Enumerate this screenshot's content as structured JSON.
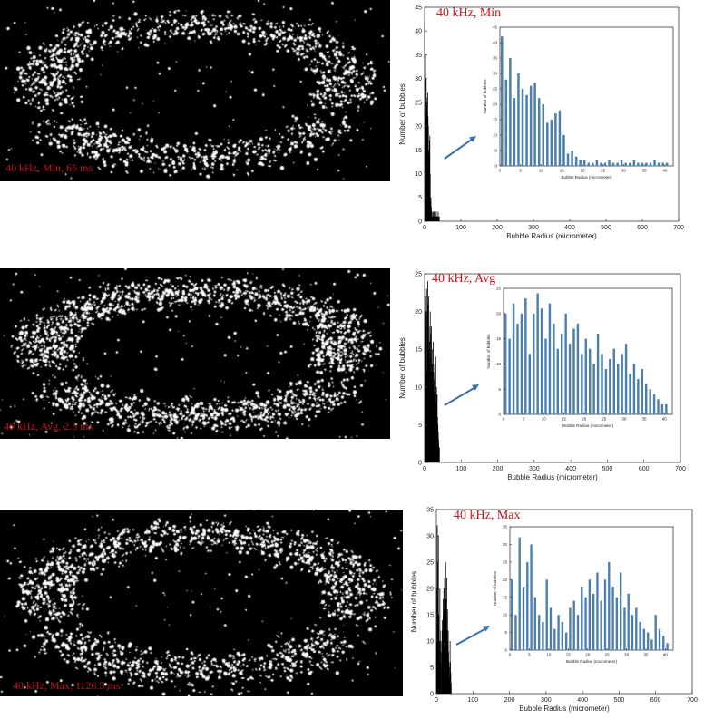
{
  "panels": [
    {
      "caption": "40 kHz, Min, 65 ms",
      "seed": 11,
      "density": 1.0,
      "chart_data": {
        "type": "bar",
        "title": "40 kHz, Min",
        "xlabel": "Bubble Radius (micrometer)",
        "ylabel": "Number of bubbles",
        "xlim": [
          0,
          700
        ],
        "ylim": [
          0,
          45
        ],
        "xticks": [
          0,
          100,
          200,
          300,
          400,
          500,
          600,
          700
        ],
        "yticks": [
          0,
          5,
          10,
          15,
          20,
          25,
          30,
          35,
          40,
          45
        ],
        "bar_color": "#000000",
        "x": [
          0.5,
          1.5,
          2.5,
          3.5,
          4.5,
          5.5,
          6.5,
          7.5,
          8.5,
          9.5,
          10.5,
          11.5,
          12.5,
          13.5,
          14.5,
          15.5,
          16.5,
          17.5,
          18.5,
          19.5,
          20.5,
          21.5,
          22.5,
          23.5,
          24.5,
          25.5,
          26.5,
          27.5,
          28.5,
          29.5,
          30.5,
          31.5,
          32.5,
          33.5,
          34.5,
          35.5,
          36.5,
          37.5,
          38.5,
          39.5,
          40.5
        ],
        "values": [
          42,
          28,
          35,
          22,
          30,
          25,
          23,
          26,
          27,
          22,
          20,
          14,
          15,
          17,
          18,
          10,
          4,
          5,
          3,
          2,
          2,
          1,
          1,
          2,
          1,
          1,
          2,
          1,
          1,
          2,
          1,
          1,
          2,
          1,
          1,
          1,
          1,
          2,
          1,
          1,
          1
        ],
        "inset": {
          "xlabel": "Bubble Radius (micrometer)",
          "ylabel": "Number of bubbles",
          "xlim": [
            0,
            42
          ],
          "ylim": [
            0,
            45
          ],
          "xticks": [
            0,
            5,
            10,
            15,
            20,
            25,
            30,
            35,
            40
          ],
          "yticks": [
            0,
            5,
            10,
            15,
            20,
            25,
            30,
            35,
            40,
            45
          ],
          "bar_color": "#4a7fb0",
          "x": [
            0.5,
            1.5,
            2.5,
            3.5,
            4.5,
            5.5,
            6.5,
            7.5,
            8.5,
            9.5,
            10.5,
            11.5,
            12.5,
            13.5,
            14.5,
            15.5,
            16.5,
            17.5,
            18.5,
            19.5,
            20.5,
            21.5,
            22.5,
            23.5,
            24.5,
            25.5,
            26.5,
            27.5,
            28.5,
            29.5,
            30.5,
            31.5,
            32.5,
            33.5,
            34.5,
            35.5,
            36.5,
            37.5,
            38.5,
            39.5,
            40.5
          ],
          "values": [
            42,
            28,
            35,
            22,
            30,
            25,
            23,
            26,
            27,
            22,
            20,
            14,
            15,
            17,
            18,
            10,
            4,
            5,
            3,
            2,
            2,
            1,
            1,
            2,
            1,
            1,
            2,
            1,
            1,
            2,
            1,
            1,
            2,
            1,
            1,
            1,
            1,
            2,
            1,
            1,
            1
          ]
        }
      }
    },
    {
      "caption": "40 kHz, Avg, 2.5 ms",
      "seed": 23,
      "density": 1.35,
      "chart_data": {
        "type": "bar",
        "title": "40 kHz, Avg",
        "xlabel": "Bubble Radius (micrometer)",
        "ylabel": "Number of bubbles",
        "xlim": [
          0,
          700
        ],
        "ylim": [
          0,
          25
        ],
        "xticks": [
          0,
          100,
          200,
          300,
          400,
          500,
          600,
          700
        ],
        "yticks": [
          0,
          5,
          10,
          15,
          20,
          25
        ],
        "bar_color": "#000000",
        "x": [
          0.5,
          1.5,
          2.5,
          3.5,
          4.5,
          5.5,
          6.5,
          7.5,
          8.5,
          9.5,
          10.5,
          11.5,
          12.5,
          13.5,
          14.5,
          15.5,
          16.5,
          17.5,
          18.5,
          19.5,
          20.5,
          21.5,
          22.5,
          23.5,
          24.5,
          25.5,
          26.5,
          27.5,
          28.5,
          29.5,
          30.5,
          31.5,
          32.5,
          33.5,
          34.5,
          35.5,
          36.5,
          37.5,
          38.5,
          39.5,
          40.5
        ],
        "values": [
          20,
          15,
          22,
          18,
          20,
          23,
          12,
          20,
          24,
          21,
          15,
          22,
          18,
          13,
          16,
          20,
          14,
          17,
          18,
          12,
          15,
          13,
          10,
          16,
          12,
          9,
          11,
          13,
          10,
          12,
          14,
          8,
          10,
          7,
          9,
          6,
          5,
          4,
          3,
          2,
          2
        ],
        "inset": {
          "xlabel": "Bubble Radius (micrometer)",
          "ylabel": "Number of bubbles",
          "xlim": [
            0,
            42
          ],
          "ylim": [
            0,
            25
          ],
          "xticks": [
            0,
            5,
            10,
            15,
            20,
            25,
            30,
            35,
            40
          ],
          "yticks": [
            0,
            5,
            10,
            15,
            20,
            25
          ],
          "bar_color": "#4a7fb0",
          "x": [
            0.5,
            1.5,
            2.5,
            3.5,
            4.5,
            5.5,
            6.5,
            7.5,
            8.5,
            9.5,
            10.5,
            11.5,
            12.5,
            13.5,
            14.5,
            15.5,
            16.5,
            17.5,
            18.5,
            19.5,
            20.5,
            21.5,
            22.5,
            23.5,
            24.5,
            25.5,
            26.5,
            27.5,
            28.5,
            29.5,
            30.5,
            31.5,
            32.5,
            33.5,
            34.5,
            35.5,
            36.5,
            37.5,
            38.5,
            39.5,
            40.5
          ],
          "values": [
            20,
            15,
            22,
            18,
            20,
            23,
            12,
            20,
            24,
            21,
            15,
            22,
            18,
            13,
            16,
            20,
            14,
            17,
            18,
            12,
            15,
            13,
            10,
            16,
            12,
            9,
            11,
            13,
            10,
            12,
            14,
            8,
            10,
            7,
            9,
            6,
            5,
            4,
            3,
            2,
            2
          ]
        }
      }
    },
    {
      "caption": "40 kHz, Max, 1126.5 ms",
      "seed": 37,
      "density": 1.15,
      "chart_data": {
        "type": "bar",
        "title": "40 kHz, Max",
        "xlabel": "Bubble Radius (micrometer)",
        "ylabel": "Number of bubbles",
        "xlim": [
          0,
          700
        ],
        "ylim": [
          0,
          35
        ],
        "xticks": [
          0,
          100,
          200,
          300,
          400,
          500,
          600,
          700
        ],
        "yticks": [
          0,
          5,
          10,
          15,
          20,
          25,
          30,
          35
        ],
        "bar_color": "#000000",
        "x": [
          0.5,
          1.5,
          2.5,
          3.5,
          4.5,
          5.5,
          6.5,
          7.5,
          8.5,
          9.5,
          10.5,
          11.5,
          12.5,
          13.5,
          14.5,
          15.5,
          16.5,
          17.5,
          18.5,
          19.5,
          20.5,
          21.5,
          22.5,
          23.5,
          24.5,
          25.5,
          26.5,
          27.5,
          28.5,
          29.5,
          30.5,
          31.5,
          32.5,
          33.5,
          34.5,
          35.5,
          36.5,
          37.5,
          38.5,
          39.5,
          40.5
        ],
        "values": [
          20,
          10,
          32,
          18,
          25,
          30,
          15,
          10,
          8,
          20,
          12,
          6,
          10,
          8,
          5,
          12,
          14,
          10,
          18,
          15,
          20,
          16,
          22,
          14,
          20,
          25,
          18,
          15,
          22,
          12,
          16,
          10,
          12,
          8,
          6,
          5,
          3,
          10,
          6,
          4,
          2
        ],
        "inset": {
          "xlabel": "Bubble Radius (micrometer)",
          "ylabel": "Number of bubbles",
          "xlim": [
            0,
            42
          ],
          "ylim": [
            0,
            35
          ],
          "xticks": [
            0,
            5,
            10,
            15,
            20,
            25,
            30,
            35,
            40
          ],
          "yticks": [
            0,
            5,
            10,
            15,
            20,
            25,
            30,
            35
          ],
          "bar_color": "#4a7fb0",
          "x": [
            0.5,
            1.5,
            2.5,
            3.5,
            4.5,
            5.5,
            6.5,
            7.5,
            8.5,
            9.5,
            10.5,
            11.5,
            12.5,
            13.5,
            14.5,
            15.5,
            16.5,
            17.5,
            18.5,
            19.5,
            20.5,
            21.5,
            22.5,
            23.5,
            24.5,
            25.5,
            26.5,
            27.5,
            28.5,
            29.5,
            30.5,
            31.5,
            32.5,
            33.5,
            34.5,
            35.5,
            36.5,
            37.5,
            38.5,
            39.5,
            40.5
          ],
          "values": [
            20,
            10,
            32,
            18,
            25,
            30,
            15,
            10,
            8,
            20,
            12,
            6,
            10,
            8,
            5,
            12,
            14,
            10,
            18,
            15,
            20,
            16,
            22,
            14,
            20,
            25,
            18,
            15,
            22,
            12,
            16,
            10,
            12,
            8,
            6,
            5,
            3,
            10,
            6,
            4,
            2
          ]
        }
      }
    }
  ],
  "colors": {
    "caption": "#c4161c",
    "arrow": "#3a6fb0",
    "inset_bar": "#4a7fb0",
    "main_bar": "#000000"
  }
}
